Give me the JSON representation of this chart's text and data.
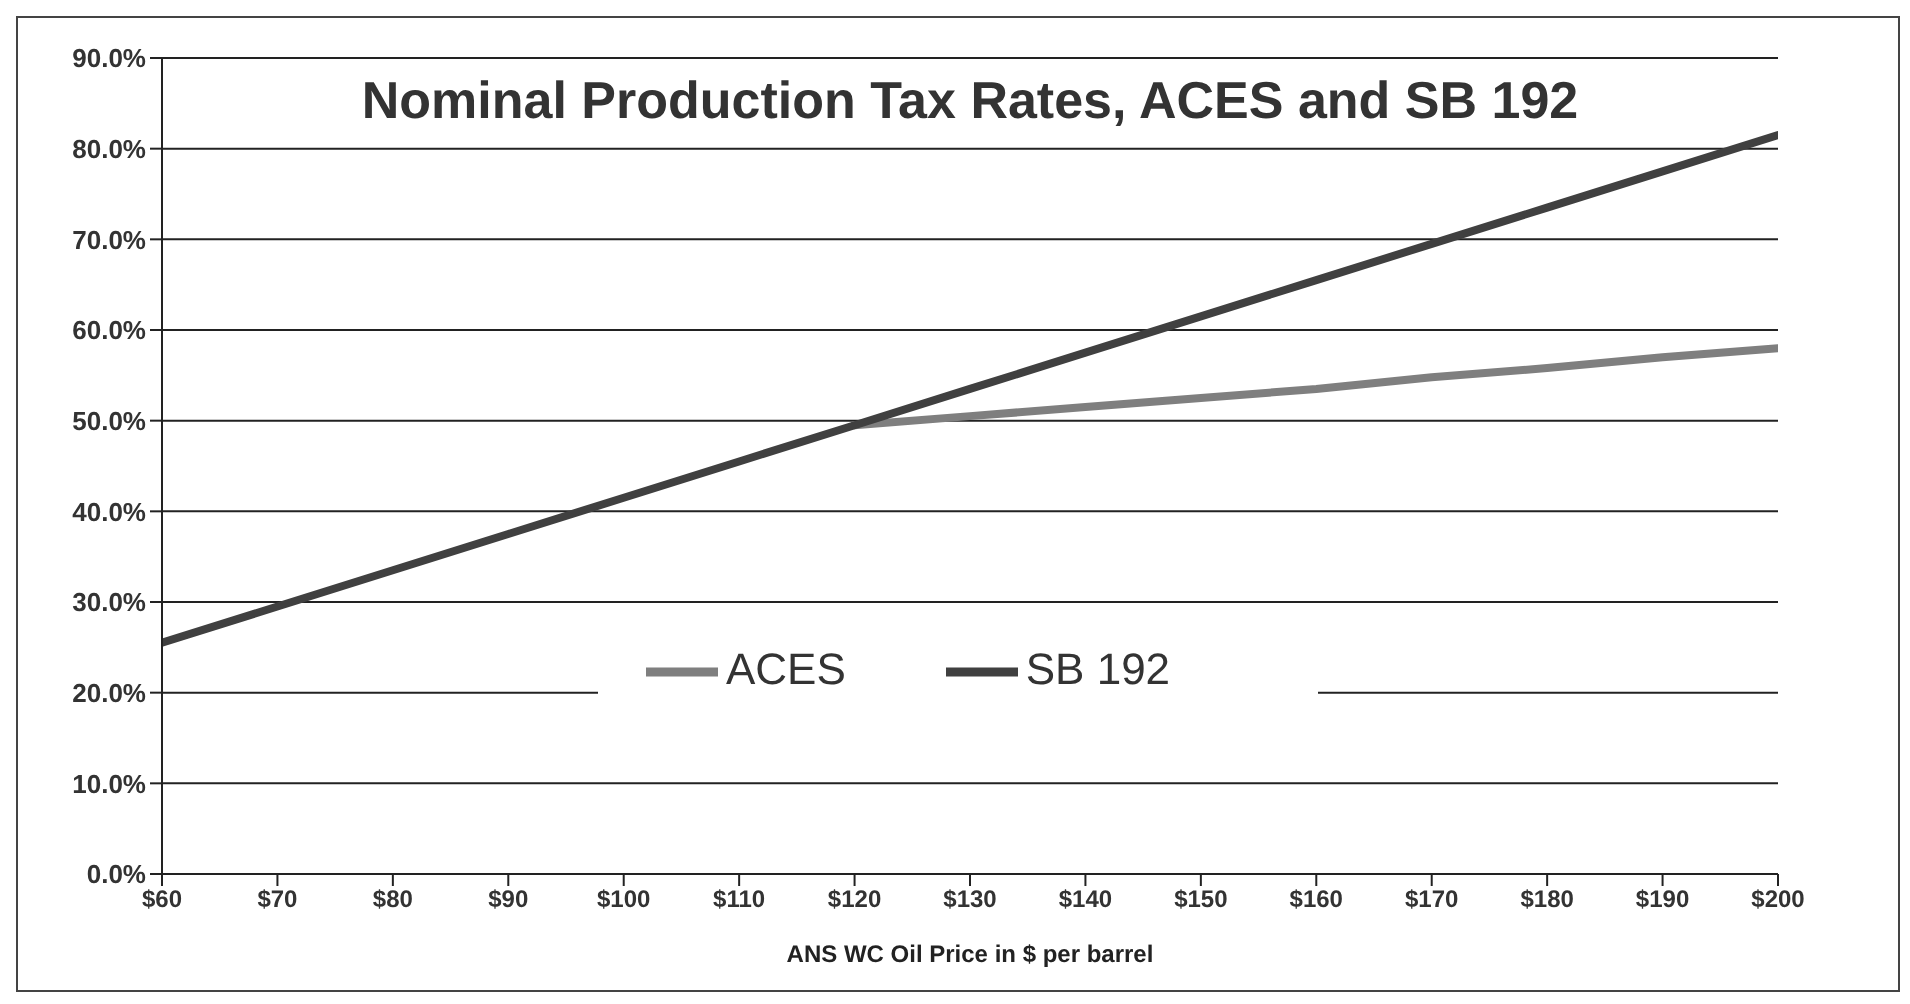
{
  "chart_data": {
    "type": "line",
    "title": "Nominal Production Tax Rates, ACES and SB 192",
    "xlabel": "ANS WC Oil Price in $ per barrel",
    "x": [
      60,
      70,
      80,
      90,
      100,
      110,
      120,
      130,
      140,
      150,
      160,
      170,
      180,
      190,
      200
    ],
    "series": [
      {
        "name": "ACES",
        "color": "#7f7f7f",
        "values": [
          null,
          null,
          null,
          null,
          null,
          null,
          49.5,
          50.5,
          51.5,
          52.5,
          53.5,
          54.8,
          55.8,
          57,
          58
        ]
      },
      {
        "name": "SB 192",
        "color": "#404040",
        "values": [
          25.5,
          29.5,
          33.5,
          37.5,
          41.5,
          45.5,
          49.5,
          53.5,
          57.5,
          61.5,
          65.5,
          69.5,
          73.5,
          77.5,
          81.5
        ]
      }
    ],
    "xlim": [
      60,
      200
    ],
    "xticks": [
      {
        "value": 60,
        "label": "$60"
      },
      {
        "value": 70,
        "label": "$70"
      },
      {
        "value": 80,
        "label": "$80"
      },
      {
        "value": 90,
        "label": "$90"
      },
      {
        "value": 100,
        "label": "$100"
      },
      {
        "value": 110,
        "label": "$110"
      },
      {
        "value": 120,
        "label": "$120"
      },
      {
        "value": 130,
        "label": "$130"
      },
      {
        "value": 140,
        "label": "$140"
      },
      {
        "value": 150,
        "label": "$150"
      },
      {
        "value": 160,
        "label": "$160"
      },
      {
        "value": 170,
        "label": "$170"
      },
      {
        "value": 180,
        "label": "$180"
      },
      {
        "value": 190,
        "label": "$190"
      },
      {
        "value": 200,
        "label": "$200"
      }
    ],
    "ylim": [
      0,
      90
    ],
    "yticks": [
      {
        "value": 0,
        "label": "0.0%"
      },
      {
        "value": 10,
        "label": "10.0%"
      },
      {
        "value": 20,
        "label": "20.0%"
      },
      {
        "value": 30,
        "label": "30.0%"
      },
      {
        "value": 40,
        "label": "40.0%"
      },
      {
        "value": 50,
        "label": "50.0%"
      },
      {
        "value": 60,
        "label": "60.0%"
      },
      {
        "value": 70,
        "label": "70.0%"
      },
      {
        "value": 80,
        "label": "80.0%"
      },
      {
        "value": 90,
        "label": "90.0%"
      }
    ],
    "grid": "y",
    "legend": "center",
    "marker": "none",
    "line_style": "solid"
  }
}
